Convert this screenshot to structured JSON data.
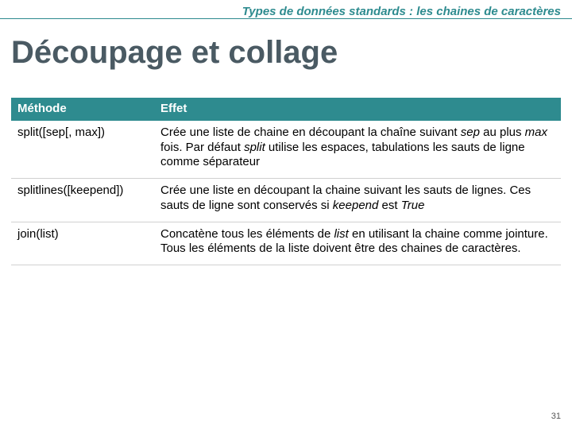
{
  "colors": {
    "accent": "#2e8b8f",
    "title": "#4a5a63",
    "border": "#d0d0d0",
    "header_border": "#2e8b8f"
  },
  "section_header": "Types de données standards : les chaines de caractères",
  "title": "Découpage et collage",
  "page_number": "31",
  "table": {
    "columns": [
      "Méthode",
      "Effet"
    ],
    "rows": [
      {
        "method_html": "split([sep[, max])",
        "effect_html": "Crée une liste de chaine en découpant la chaîne suivant <span class=\"italic\">sep</span> au plus <span class=\"italic\">max</span> fois. Par défaut <span class=\"italic\">split</span> utilise les espaces, tabulations les sauts de ligne comme séparateur"
      },
      {
        "method_html": "splitlines([keepend])",
        "effect_html": "Crée une liste en découpant la chaine suivant les sauts de lignes. Ces sauts de ligne sont conservés si <span class=\"italic\">keepend</span> est <span class=\"italic\">True</span>"
      },
      {
        "method_html": "join(list)",
        "effect_html": "Concatène tous les éléments de <span class=\"italic\">list</span> en utilisant la chaine comme jointure. Tous les éléments de la liste doivent être des chaines de caractères."
      }
    ]
  }
}
